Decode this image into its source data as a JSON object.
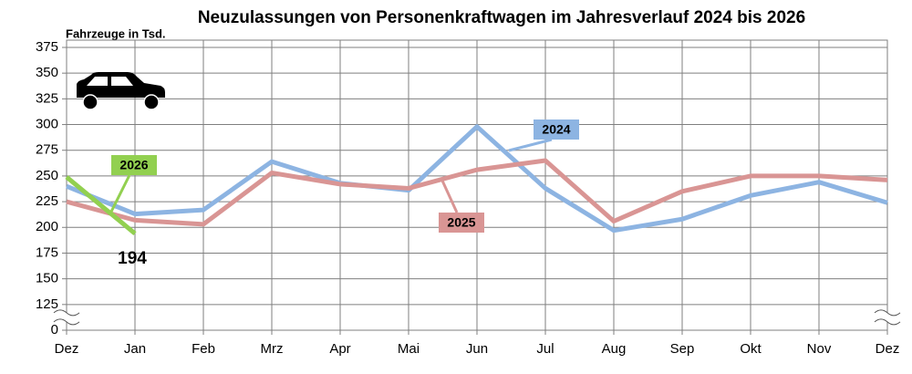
{
  "chart_data": {
    "type": "line",
    "title": "Neuzulassungen von Personenkraftwagen im Jahresverlauf 2024 bis 2026",
    "y_label": "Fahrzeuge in Tsd.",
    "categories": [
      "Dez",
      "Jan",
      "Feb",
      "Mrz",
      "Apr",
      "Mai",
      "Jun",
      "Jul",
      "Aug",
      "Sep",
      "Okt",
      "Nov",
      "Dez"
    ],
    "ylim": [
      0,
      375
    ],
    "y_break": [
      0,
      125
    ],
    "yticks": [
      0,
      125,
      150,
      175,
      200,
      225,
      250,
      275,
      300,
      325,
      350,
      375
    ],
    "grid": true,
    "series": [
      {
        "name": "2024",
        "color": "#8db4e2",
        "values": [
          240,
          213,
          217,
          264,
          243,
          236,
          298,
          238,
          197,
          208,
          231,
          244,
          224
        ]
      },
      {
        "name": "2025",
        "color": "#d99594",
        "values": [
          225,
          207,
          203,
          253,
          242,
          238,
          256,
          265,
          206,
          235,
          250,
          250,
          246
        ]
      },
      {
        "name": "2026",
        "color": "#92d050",
        "values": [
          249,
          194,
          null,
          null,
          null,
          null,
          null,
          null,
          null,
          null,
          null,
          null,
          null
        ]
      }
    ]
  }
}
